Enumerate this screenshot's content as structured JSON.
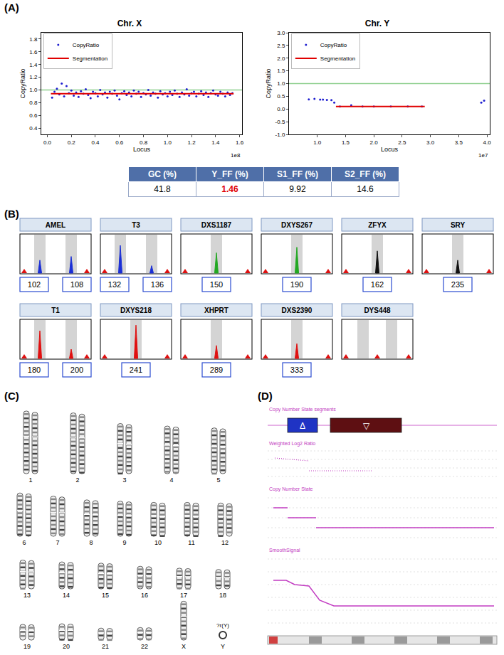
{
  "panel_labels": [
    "(A)",
    "(B)",
    "(C)",
    "(D)"
  ],
  "chart_data": [
    {
      "type": "scatter",
      "title": "Chr. X",
      "x_label": "Locus",
      "y_label": "CopyRatio",
      "series": [
        {
          "name": "CopyRatio",
          "type": "scatter",
          "color": "#1f1fd0",
          "marker": "circle",
          "x": [
            0.04,
            0.06,
            0.08,
            0.1,
            0.12,
            0.14,
            0.16,
            0.18,
            0.2,
            0.22,
            0.24,
            0.26,
            0.28,
            0.3,
            0.32,
            0.34,
            0.36,
            0.38,
            0.4,
            0.42,
            0.44,
            0.46,
            0.48,
            0.5,
            0.52,
            0.54,
            0.56,
            0.58,
            0.6,
            0.62,
            0.64,
            0.66,
            0.68,
            0.7,
            0.72,
            0.74,
            0.76,
            0.78,
            0.8,
            0.82,
            0.84,
            0.86,
            0.88,
            0.9,
            0.92,
            0.94,
            0.96,
            0.98,
            1.0,
            1.02,
            1.04,
            1.06,
            1.08,
            1.1,
            1.12,
            1.14,
            1.16,
            1.18,
            1.2,
            1.22,
            1.24,
            1.26,
            1.28,
            1.3,
            1.32,
            1.34,
            1.36,
            1.38,
            1.4,
            1.42,
            1.44,
            1.46,
            1.48,
            1.5,
            1.52,
            1.54
          ],
          "values": [
            0.88,
            0.97,
            1.02,
            0.93,
            1.1,
            0.9,
            1.06,
            0.95,
            0.99,
            0.91,
            0.96,
            0.89,
            0.98,
            0.94,
            1.01,
            0.92,
            0.87,
            0.97,
            0.95,
            0.9,
            1.0,
            0.93,
            0.96,
            0.88,
            0.97,
            0.94,
            0.99,
            0.91,
            0.85,
            0.95,
            0.98,
            0.92,
            0.96,
            0.9,
            0.99,
            0.94,
            0.97,
            0.89,
            0.95,
            0.93,
            1.0,
            0.91,
            0.96,
            0.94,
            0.88,
            0.98,
            0.93,
            0.95,
            0.9,
            0.97,
            0.92,
            0.99,
            0.94,
            0.89,
            0.96,
            0.93,
            1.01,
            0.91,
            0.95,
            0.97,
            0.9,
            0.94,
            0.98,
            0.92,
            0.96,
            0.89,
            0.95,
            0.99,
            0.93,
            0.91,
            0.97,
            0.94,
            0.9,
            0.96,
            0.92,
            0.95
          ]
        },
        {
          "name": "Segmentation",
          "type": "line",
          "color": "#e00000",
          "line_style": "solid",
          "x": [
            0.03,
            1.55
          ],
          "values": [
            0.94,
            0.94
          ]
        }
      ],
      "reference_line": {
        "value": 1,
        "color": "#8fd08f"
      },
      "xlim": [
        -0.05,
        1.62
      ],
      "xticks": [
        {
          "value": 0,
          "label": "0.0"
        },
        0.2,
        0.4,
        0.6,
        0.8,
        {
          "value": 1,
          "label": "1.0"
        },
        1.2,
        1.4,
        1.6
      ],
      "ylim": [
        0.3,
        1.9
      ],
      "yticks": [
        0.4,
        0.6,
        0.8,
        {
          "value": 1,
          "label": "1.0"
        },
        1.2,
        1.4,
        1.6,
        1.8
      ],
      "annotations": [
        "1e8"
      ],
      "legend": "top-left",
      "grid": false
    },
    {
      "type": "scatter",
      "title": "Chr. Y",
      "x_label": "Locus",
      "y_label": "CopyRatio",
      "series": [
        {
          "name": "CopyRatio",
          "type": "scatter",
          "color": "#1f1fd0",
          "marker": "circle",
          "x": [
            0.85,
            0.95,
            1.05,
            1.1,
            1.17,
            1.25,
            1.3,
            1.4,
            1.6,
            1.8,
            2.0,
            2.3,
            2.6,
            2.85,
            3.9,
            3.95
          ],
          "values": [
            0.38,
            0.4,
            0.37,
            0.37,
            0.36,
            0.35,
            0.25,
            0.1,
            0.15,
            0.1,
            0.1,
            0.1,
            0.1,
            0.1,
            0.25,
            0.33
          ]
        },
        {
          "name": "Segmentation",
          "type": "line",
          "color": "#e00000",
          "line_style": "solid",
          "x": [
            1.33,
            2.9
          ],
          "values": [
            0.1,
            0.1
          ]
        }
      ],
      "reference_line": {
        "value": 1,
        "color": "#8fd08f"
      },
      "xlim": [
        0.5,
        4.05
      ],
      "xticks": [
        {
          "value": 1,
          "label": "1.0"
        },
        1.5,
        {
          "value": 2,
          "label": "2.0"
        },
        2.5,
        {
          "value": 3,
          "label": "3.0"
        },
        3.5,
        {
          "value": 4,
          "label": "4.0"
        }
      ],
      "ylim": [
        -1,
        3
      ],
      "yticks": [
        {
          "value": -1,
          "label": "-1.0"
        },
        -0.5,
        {
          "value": 0,
          "label": "0.0"
        },
        0.5,
        {
          "value": 1,
          "label": "1.0"
        },
        1.5,
        {
          "value": 2,
          "label": "2.0"
        },
        2.5,
        {
          "value": 3,
          "label": "3.0"
        }
      ],
      "annotations": [
        "1e7"
      ],
      "legend": "top-left",
      "grid": false
    }
  ],
  "table": {
    "header": [
      "GC (%)",
      "Y_FF (%)",
      "S1_FF (%)",
      "S2_FF (%)"
    ],
    "rows": [
      [
        {
          "text": "41.8",
          "color": "#000000"
        },
        {
          "text": "1.46",
          "color": "#e00000"
        },
        {
          "text": "9.92",
          "color": "#000000"
        },
        {
          "text": "14.6",
          "color": "#000000"
        }
      ]
    ]
  },
  "str_markers": [
    {
      "name": "AMEL",
      "color": "#1a2fd6",
      "sizes": [
        102,
        108
      ],
      "heights": [
        0.35,
        0.45
      ]
    },
    {
      "name": "T3",
      "color": "#1a2fd6",
      "sizes": [
        132,
        136
      ],
      "heights": [
        0.75,
        0.2
      ]
    },
    {
      "name": "DXS1187",
      "color": "#22a822",
      "sizes": [
        150
      ],
      "heights": [
        0.55
      ]
    },
    {
      "name": "DXYS267",
      "color": "#22a822",
      "sizes": [
        190
      ],
      "heights": [
        0.7
      ]
    },
    {
      "name": "ZFYX",
      "color": "#111111",
      "sizes": [
        162
      ],
      "heights": [
        0.6
      ]
    },
    {
      "name": "SRY",
      "color": "#111111",
      "sizes": [
        235
      ],
      "heights": [
        0.35
      ]
    },
    {
      "name": "T1",
      "color": "#e01010",
      "sizes": [
        180,
        200
      ],
      "heights": [
        0.75,
        0.25
      ]
    },
    {
      "name": "DXYS218",
      "color": "#e01010",
      "sizes": [
        241
      ],
      "heights": [
        0.9
      ]
    },
    {
      "name": "XHPRT",
      "color": "#e01010",
      "sizes": [
        289
      ],
      "heights": [
        0.35
      ]
    },
    {
      "name": "DXS2390",
      "color": "#e01010",
      "sizes": [
        333
      ],
      "heights": [
        0.4
      ]
    },
    {
      "name": "DYS448",
      "color": "#e01010",
      "sizes": [],
      "heights": []
    }
  ],
  "karyotype": {
    "labels": [
      "1",
      "2",
      "3",
      "4",
      "5",
      "6",
      "7",
      "8",
      "9",
      "10",
      "11",
      "12",
      "13",
      "14",
      "15",
      "16",
      "17",
      "18",
      "19",
      "20",
      "21",
      "22",
      "X",
      "Y"
    ],
    "annotation": "?r(Y)"
  },
  "cnv_tracks": {
    "labels": [
      "Copy Number State segments",
      "Weighted Log2 Ratio",
      "Copy Number State",
      "SmoothSignal"
    ],
    "segments": [
      {
        "symbol": "Δ",
        "color": "#1f33c4"
      },
      {
        "symbol": "▽",
        "color": "#5e0f12"
      }
    ]
  }
}
